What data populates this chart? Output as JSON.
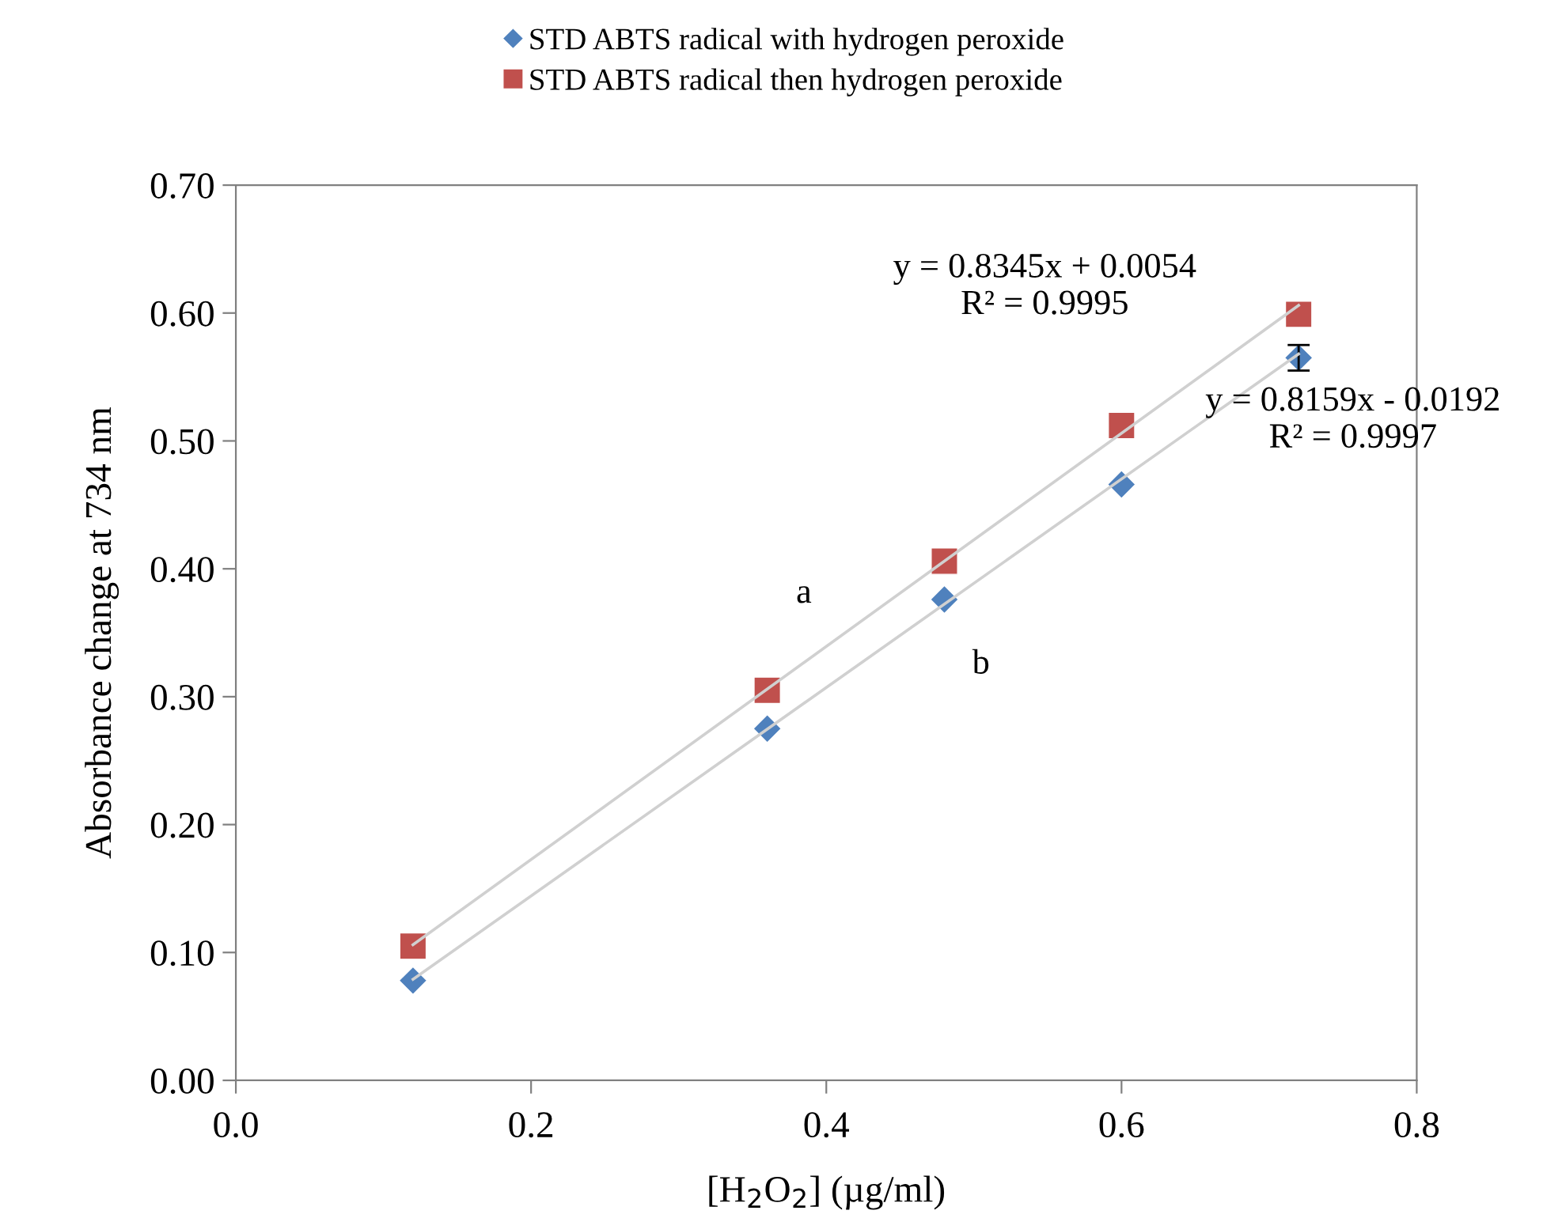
{
  "chart_data": {
    "type": "scatter",
    "xlabel": "[H$_{2}$O$_{2}$] (µg/ml)",
    "ylabel": "Absorbance change at 734 nm",
    "xlim": [
      0,
      0.8
    ],
    "ylim": [
      0,
      0.7
    ],
    "xticks": [
      {
        "value": 0,
        "label": "0.0"
      },
      {
        "value": 0.2,
        "label": "0.2"
      },
      {
        "value": 0.4,
        "label": "0.4"
      },
      {
        "value": 0.6,
        "label": "0.6"
      },
      {
        "value": 0.8,
        "label": "0.8"
      }
    ],
    "yticks": [
      {
        "value": 0,
        "label": "0.00"
      },
      {
        "value": 0.1,
        "label": "0.10"
      },
      {
        "value": 0.2,
        "label": "0.20"
      },
      {
        "value": 0.3,
        "label": "0.30"
      },
      {
        "value": 0.4,
        "label": "0.40"
      },
      {
        "value": 0.5,
        "label": "0.50"
      },
      {
        "value": 0.6,
        "label": "0.60"
      },
      {
        "value": 0.7,
        "label": "0.70"
      }
    ],
    "grid": false,
    "legend": "top",
    "series": [
      {
        "type": "line",
        "color": "#d0d0d0",
        "x": [
          0.12,
          0.72
        ],
        "values": [
          0.079,
          0.568
        ],
        "marker": "none"
      },
      {
        "type": "line",
        "color": "#d0d0d0",
        "x": [
          0.12,
          0.72
        ],
        "values": [
          0.106,
          0.606
        ],
        "marker": "none"
      },
      {
        "name": "STD ABTS radical with hydrogen peroxide",
        "color": "#4f81bd",
        "marker": "diamond",
        "x": [
          0.12,
          0.36,
          0.48,
          0.6,
          0.72
        ],
        "values": [
          0.078,
          0.275,
          0.376,
          0.466,
          0.565
        ],
        "errors": [
          null,
          null,
          null,
          null,
          0.01
        ]
      },
      {
        "name": "STD ABTS radical then hydrogen peroxide",
        "color": "#c0504d",
        "marker": "square",
        "x": [
          0.12,
          0.36,
          0.48,
          0.6,
          0.72
        ],
        "values": [
          0.105,
          0.305,
          0.406,
          0.512,
          0.599
        ]
      }
    ],
    "annotations": [
      "y = 0.8345x + 0.0054\nR² = 0.9995",
      "y = 0.8159x - 0.0192\nR² = 0.9997",
      "a",
      "b"
    ]
  }
}
